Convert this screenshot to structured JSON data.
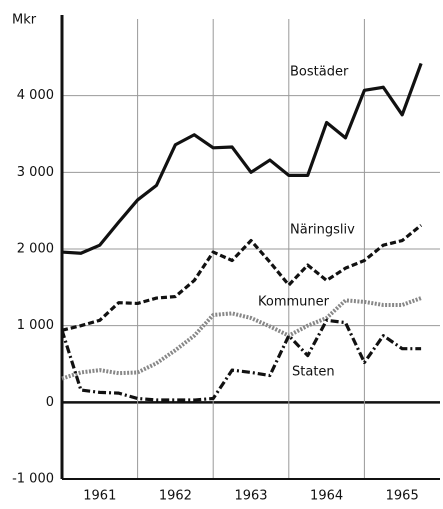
{
  "chart_data": {
    "type": "line",
    "y_label": "Mkr",
    "x": [
      1961,
      1961.25,
      1961.5,
      1961.75,
      1962,
      1962.25,
      1962.5,
      1962.75,
      1963,
      1963.25,
      1963.5,
      1963.75,
      1964,
      1964.25,
      1964.5,
      1964.75,
      1965,
      1965.25,
      1965.5,
      1965.75
    ],
    "xlim": [
      1961,
      1966
    ],
    "xticks": [
      1961,
      1962,
      1963,
      1964,
      1965
    ],
    "ylim": [
      -1000,
      5000
    ],
    "yticks": [
      {
        "value": -1000,
        "label": "-1 000"
      },
      0,
      {
        "value": 1000,
        "label": "1 000"
      },
      {
        "value": 2000,
        "label": "2 000"
      },
      {
        "value": 3000,
        "label": "3 000"
      },
      {
        "value": 4000,
        "label": "4 000"
      }
    ],
    "grid": true,
    "series": [
      {
        "name": "Bostäder",
        "color": "#111111",
        "style": "solid",
        "values": [
          1960,
          1945,
          2050,
          2350,
          2640,
          2830,
          3360,
          3490,
          3320,
          3330,
          3000,
          3160,
          2960,
          2960,
          3650,
          3450,
          4070,
          4110,
          3750,
          4420
        ]
      },
      {
        "name": "Näringsliv",
        "color": "#111111",
        "style": "dashed",
        "values": [
          940,
          1000,
          1070,
          1300,
          1290,
          1360,
          1380,
          1590,
          1960,
          1850,
          2110,
          1830,
          1530,
          1790,
          1590,
          1750,
          1850,
          2050,
          2110,
          2310
        ]
      },
      {
        "name": "Kommuner",
        "color": "#888888",
        "style": "dotted",
        "values": [
          310,
          390,
          420,
          380,
          390,
          510,
          680,
          870,
          1140,
          1160,
          1100,
          990,
          870,
          1000,
          1100,
          1330,
          1310,
          1270,
          1270,
          1360
        ]
      },
      {
        "name": "Staten",
        "color": "#111111",
        "style": "dashdot",
        "values": [
          940,
          160,
          130,
          120,
          50,
          30,
          30,
          30,
          50,
          420,
          390,
          350,
          870,
          610,
          1070,
          1040,
          520,
          870,
          700,
          700
        ]
      }
    ]
  }
}
